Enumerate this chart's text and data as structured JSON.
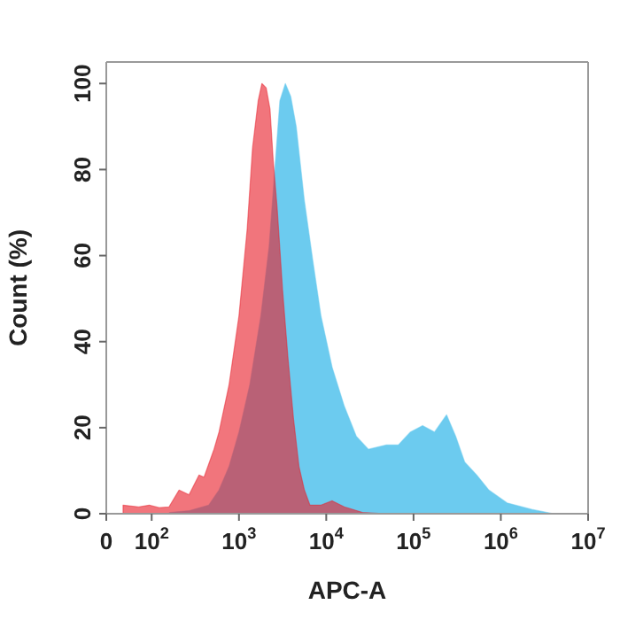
{
  "chart_data": {
    "type": "area",
    "xlabel": "APC-A",
    "ylabel": "Count (%)",
    "log": "x",
    "xlim": [
      0,
      10000000
    ],
    "ylim": [
      0,
      105
    ],
    "xticks": [
      0,
      {
        "value": 100,
        "label": "10$^{2}$"
      },
      {
        "value": 1000,
        "label": "10$^{3}$"
      },
      {
        "value": 10000,
        "label": "10$^{4}$"
      },
      {
        "value": 100000,
        "label": "10$^{5}$"
      },
      {
        "value": 1000000,
        "label": "10$^{6}$"
      },
      {
        "value": 10000000,
        "label": "10$^{7}$"
      }
    ],
    "yticks": [
      0,
      20,
      40,
      60,
      80,
      100
    ],
    "series": [
      {
        "color": "#6ccbef",
        "x": [
          160,
          270,
          450,
          590,
          770,
          1000,
          1330,
          1780,
          2210,
          2550,
          2940,
          3400,
          3920,
          4530,
          5600,
          7000,
          8700,
          11700,
          16100,
          22100,
          30400,
          49000,
          67000,
          92000,
          127000,
          174000,
          239000,
          304000,
          386000,
          530000,
          730000,
          1180000,
          2280000,
          4050000
        ],
        "values": [
          0.3,
          0.7,
          2,
          5.5,
          11,
          19,
          30,
          46,
          62,
          79,
          96,
          100,
          97,
          90,
          73,
          59,
          46,
          34,
          25,
          18,
          15,
          16,
          16,
          19,
          20.5,
          19,
          23,
          18,
          12,
          9,
          5.5,
          2.5,
          1,
          0
        ]
      },
      {
        "color": "#e8202c",
        "x": [
          47,
          71,
          94,
          122,
          158,
          206,
          268,
          349,
          398,
          518,
          591,
          770,
          1000,
          1240,
          1430,
          1660,
          1830,
          2050,
          2270,
          2470,
          2740,
          3160,
          3650,
          4220,
          4870,
          5620,
          6500,
          8700,
          11700,
          16100,
          26000,
          49000
        ],
        "values": [
          2,
          1.6,
          2,
          1.4,
          1.6,
          5.5,
          4.4,
          9,
          8.5,
          15,
          19,
          30,
          46,
          66,
          85,
          96,
          100,
          99,
          94,
          82,
          71,
          52,
          36,
          22,
          11,
          5.5,
          2,
          2,
          3,
          1.6,
          0.3,
          0
        ]
      }
    ]
  }
}
